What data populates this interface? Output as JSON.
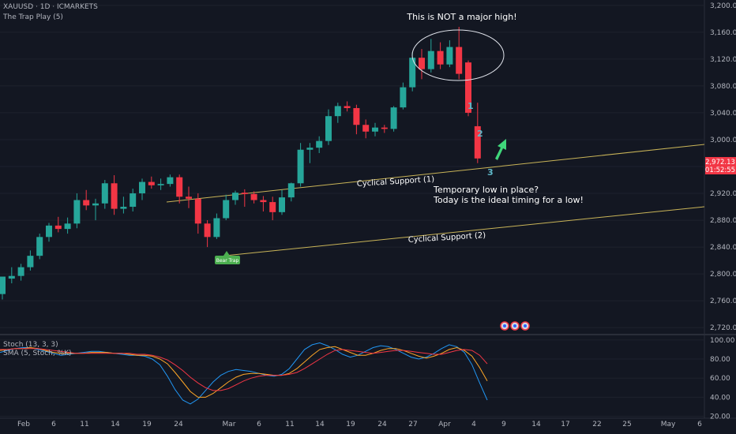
{
  "header": {
    "symbol_line": "XAUUSD · 1D · ICMARKETS",
    "indicator_line": "The Trap Play (5)"
  },
  "lower_pane": {
    "title": "Stoch (13, 3, 3)",
    "subtitle": "SMA (5, Stoch, %K)"
  },
  "price_tag": {
    "price": "2,972.13",
    "countdown": "01:52:55",
    "color": "#f23645"
  },
  "colors": {
    "up": "#26a69a",
    "down": "#f23645",
    "k": "#2196f3",
    "d": "#ffa726",
    "sma": "#f23645",
    "support": "#c9b458"
  },
  "chart_data": [
    {
      "type": "candlestick",
      "price_axis": {
        "ticks": [
          2720,
          2760,
          2800,
          2840,
          2880,
          2920,
          2960,
          3000,
          3040,
          3080,
          3120,
          3160,
          3200
        ],
        "tick_labels": [
          "2,720.00",
          "2,760.00",
          "2,800.00",
          "2,840.00",
          "2,880.00",
          "2,920.00",
          "2,960.00",
          "3,000.00",
          "3,040.00",
          "3,080.00",
          "3,120.00",
          "3,160.00",
          "3,200.00"
        ],
        "range": [
          2712,
          3208
        ]
      },
      "time_axis": {
        "labels": [
          "Feb",
          "6",
          "11",
          "14",
          "19",
          "24",
          "Mar",
          "6",
          "11",
          "14",
          "19",
          "24",
          "27",
          "Apr",
          "4",
          "9",
          "14",
          "17",
          "22",
          "25",
          "May",
          "6"
        ]
      },
      "candles": [
        {
          "o": 2770,
          "h": 2795,
          "l": 2762,
          "c": 2796
        },
        {
          "o": 2793,
          "h": 2810,
          "l": 2786,
          "c": 2797
        },
        {
          "o": 2797,
          "h": 2815,
          "l": 2790,
          "c": 2810
        },
        {
          "o": 2810,
          "h": 2835,
          "l": 2805,
          "c": 2827
        },
        {
          "o": 2827,
          "h": 2860,
          "l": 2822,
          "c": 2855
        },
        {
          "o": 2855,
          "h": 2876,
          "l": 2848,
          "c": 2872
        },
        {
          "o": 2872,
          "h": 2885,
          "l": 2862,
          "c": 2867
        },
        {
          "o": 2867,
          "h": 2884,
          "l": 2860,
          "c": 2875
        },
        {
          "o": 2875,
          "h": 2920,
          "l": 2868,
          "c": 2910
        },
        {
          "o": 2910,
          "h": 2925,
          "l": 2895,
          "c": 2902
        },
        {
          "o": 2902,
          "h": 2912,
          "l": 2880,
          "c": 2905
        },
        {
          "o": 2905,
          "h": 2940,
          "l": 2897,
          "c": 2935
        },
        {
          "o": 2935,
          "h": 2947,
          "l": 2888,
          "c": 2897
        },
        {
          "o": 2897,
          "h": 2915,
          "l": 2890,
          "c": 2900
        },
        {
          "o": 2900,
          "h": 2927,
          "l": 2893,
          "c": 2920
        },
        {
          "o": 2920,
          "h": 2942,
          "l": 2910,
          "c": 2937
        },
        {
          "o": 2937,
          "h": 2945,
          "l": 2927,
          "c": 2932
        },
        {
          "o": 2932,
          "h": 2942,
          "l": 2925,
          "c": 2934
        },
        {
          "o": 2934,
          "h": 2948,
          "l": 2930,
          "c": 2944
        },
        {
          "o": 2944,
          "h": 2948,
          "l": 2905,
          "c": 2915
        },
        {
          "o": 2915,
          "h": 2930,
          "l": 2898,
          "c": 2912
        },
        {
          "o": 2912,
          "h": 2920,
          "l": 2860,
          "c": 2875
        },
        {
          "o": 2875,
          "h": 2880,
          "l": 2840,
          "c": 2855
        },
        {
          "o": 2855,
          "h": 2890,
          "l": 2852,
          "c": 2883
        },
        {
          "o": 2883,
          "h": 2918,
          "l": 2880,
          "c": 2910
        },
        {
          "o": 2910,
          "h": 2924,
          "l": 2903,
          "c": 2921
        },
        {
          "o": 2921,
          "h": 2926,
          "l": 2900,
          "c": 2919
        },
        {
          "o": 2919,
          "h": 2923,
          "l": 2905,
          "c": 2910
        },
        {
          "o": 2910,
          "h": 2916,
          "l": 2893,
          "c": 2907
        },
        {
          "o": 2907,
          "h": 2915,
          "l": 2880,
          "c": 2892
        },
        {
          "o": 2892,
          "h": 2925,
          "l": 2888,
          "c": 2914
        },
        {
          "o": 2914,
          "h": 2936,
          "l": 2908,
          "c": 2935
        },
        {
          "o": 2935,
          "h": 2995,
          "l": 2930,
          "c": 2985
        },
        {
          "o": 2985,
          "h": 2995,
          "l": 2965,
          "c": 2988
        },
        {
          "o": 2988,
          "h": 3005,
          "l": 2980,
          "c": 2998
        },
        {
          "o": 2998,
          "h": 3045,
          "l": 2992,
          "c": 3035
        },
        {
          "o": 3035,
          "h": 3055,
          "l": 3025,
          "c": 3050
        },
        {
          "o": 3050,
          "h": 3057,
          "l": 3042,
          "c": 3047
        },
        {
          "o": 3047,
          "h": 3052,
          "l": 3008,
          "c": 3022
        },
        {
          "o": 3022,
          "h": 3030,
          "l": 3002,
          "c": 3012
        },
        {
          "o": 3012,
          "h": 3025,
          "l": 3005,
          "c": 3018
        },
        {
          "o": 3018,
          "h": 3022,
          "l": 3010,
          "c": 3016
        },
        {
          "o": 3016,
          "h": 3050,
          "l": 3012,
          "c": 3048
        },
        {
          "o": 3048,
          "h": 3085,
          "l": 3045,
          "c": 3078
        },
        {
          "o": 3078,
          "h": 3130,
          "l": 3072,
          "c": 3122
        },
        {
          "o": 3122,
          "h": 3135,
          "l": 3090,
          "c": 3105
        },
        {
          "o": 3105,
          "h": 3150,
          "l": 3100,
          "c": 3132
        },
        {
          "o": 3132,
          "h": 3145,
          "l": 3105,
          "c": 3112
        },
        {
          "o": 3112,
          "h": 3148,
          "l": 3108,
          "c": 3138
        },
        {
          "o": 3138,
          "h": 3168,
          "l": 3090,
          "c": 3098
        },
        {
          "o": 3115,
          "h": 3118,
          "l": 3035,
          "c": 3040
        },
        {
          "o": 3020,
          "h": 3055,
          "l": 2965,
          "c": 2972
        }
      ],
      "wave_labels": [
        "1",
        "2",
        "3"
      ]
    },
    {
      "type": "line",
      "y_axis": {
        "ticks": [
          20,
          40,
          60,
          80,
          100
        ],
        "tick_labels": [
          "20.00",
          "40.00",
          "60.00",
          "80.00",
          "100.00"
        ],
        "range": [
          18,
          104
        ]
      },
      "series": [
        {
          "values": [
            87,
            89,
            91,
            92,
            92,
            90,
            88,
            86,
            84,
            85,
            86,
            87,
            88,
            88,
            87,
            86,
            85,
            84,
            84,
            83,
            80,
            74,
            62,
            48,
            37,
            33,
            38,
            47,
            56,
            63,
            67,
            69,
            68,
            67,
            65,
            63,
            62,
            64,
            70,
            80,
            90,
            95,
            97,
            94,
            90,
            85,
            82,
            84,
            88,
            92,
            94,
            93,
            90,
            86,
            82,
            80,
            82,
            86,
            91,
            95,
            93,
            87,
            74,
            55,
            37
          ]
        },
        {
          "values": [
            89,
            90,
            91,
            91,
            92,
            91,
            89,
            87,
            86,
            86,
            86,
            86,
            87,
            87,
            87,
            86,
            86,
            85,
            84,
            84,
            83,
            80,
            75,
            66,
            56,
            46,
            40,
            40,
            44,
            50,
            56,
            61,
            64,
            65,
            65,
            64,
            63,
            63,
            65,
            70,
            77,
            84,
            90,
            92,
            93,
            90,
            87,
            84,
            84,
            86,
            89,
            91,
            91,
            89,
            86,
            83,
            81,
            83,
            86,
            90,
            92,
            89,
            83,
            71,
            57
          ]
        },
        {
          "values": [
            90,
            90,
            91,
            91,
            91,
            91,
            90,
            89,
            88,
            87,
            86,
            86,
            86,
            86,
            86,
            86,
            86,
            86,
            85,
            85,
            84,
            82,
            79,
            74,
            68,
            61,
            55,
            50,
            47,
            47,
            49,
            53,
            57,
            60,
            62,
            63,
            63,
            63,
            64,
            66,
            70,
            75,
            80,
            85,
            89,
            90,
            89,
            88,
            87,
            86,
            87,
            88,
            89,
            89,
            88,
            87,
            86,
            85,
            85,
            87,
            89,
            90,
            89,
            84,
            75
          ]
        }
      ]
    }
  ],
  "annotations": {
    "top_note": "This is NOT a major high!",
    "support1": "Cyclical Support (1)",
    "support2": "Cyclical Support (2)",
    "note_line1": "Temporary low in place?",
    "note_line2": "Today is the ideal timing for a low!",
    "bear_trap": "Bear Trap"
  }
}
